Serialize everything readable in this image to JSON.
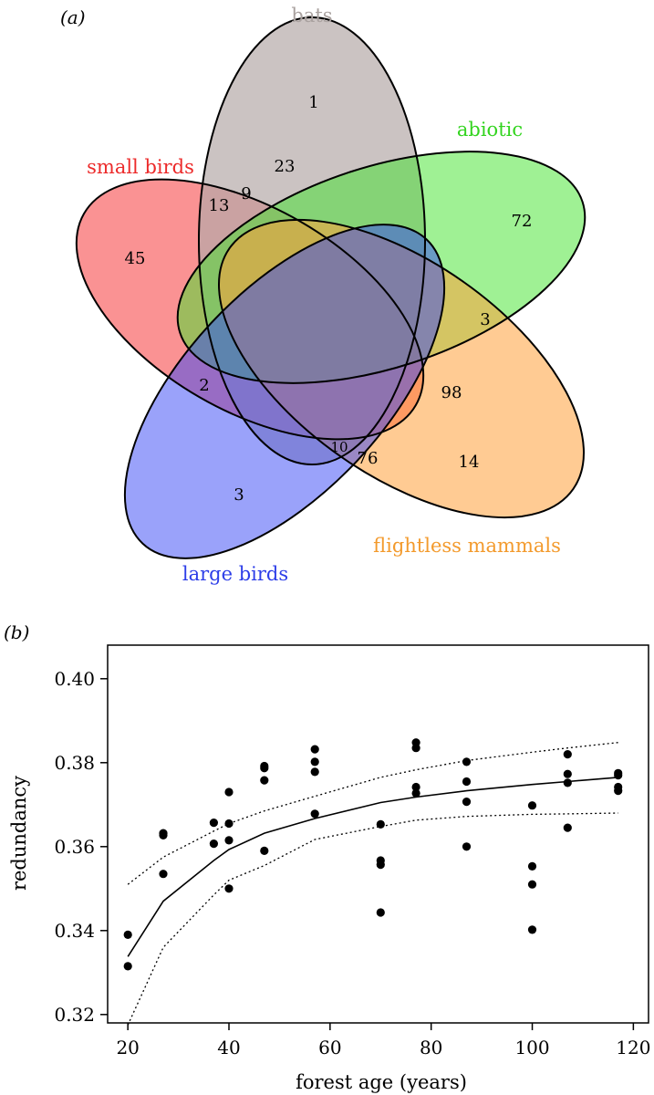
{
  "chart_data": [
    {
      "type": "venn",
      "panel_label": "(a)",
      "sets": [
        {
          "name": "bats",
          "color": "#b8b0ae"
        },
        {
          "name": "abiotic",
          "color": "#44e62e"
        },
        {
          "name": "small birds",
          "color": "#f5393a"
        },
        {
          "name": "large birds",
          "color": "#4a57f7"
        },
        {
          "name": "flightless mammals",
          "color": "#ffa533"
        }
      ],
      "regions": [
        {
          "sets": [
            "bats"
          ],
          "count": "1"
        },
        {
          "sets": [
            "bats",
            "small birds"
          ],
          "count": "23"
        },
        {
          "sets": [
            "small birds",
            "bats",
            "large birds"
          ],
          "count": "13"
        },
        {
          "sets": [
            "small birds",
            "bats",
            "large birds",
            "flightless mammals"
          ],
          "count": "9"
        },
        {
          "sets": [
            "abiotic"
          ],
          "count": "72"
        },
        {
          "sets": [
            "small birds"
          ],
          "count": "45"
        },
        {
          "sets": [
            "abiotic",
            "flightless mammals"
          ],
          "count": "3"
        },
        {
          "sets": [
            "small birds",
            "large birds"
          ],
          "count": "2"
        },
        {
          "sets": [
            "large birds",
            "flightless mammals",
            "abiotic"
          ],
          "count": "98"
        },
        {
          "sets": [
            "large birds",
            "flightless mammals",
            "bats"
          ],
          "count": "10"
        },
        {
          "sets": [
            "large birds",
            "flightless mammals"
          ],
          "count": "76"
        },
        {
          "sets": [
            "flightless mammals"
          ],
          "count": "14"
        },
        {
          "sets": [
            "large birds"
          ],
          "count": "3"
        }
      ]
    },
    {
      "type": "scatter",
      "panel_label": "(b)",
      "xlabel": "forest age (years)",
      "ylabel": "redundancy",
      "xlim": [
        16,
        123
      ],
      "ylim": [
        0.318,
        0.408
      ],
      "xticks": [
        "20",
        "40",
        "60",
        "80",
        "100",
        "120"
      ],
      "yticks": [
        "0.32",
        "0.34",
        "0.36",
        "0.38",
        "0.40"
      ],
      "points": [
        [
          20,
          0.339
        ],
        [
          20,
          0.3315
        ],
        [
          27,
          0.3627
        ],
        [
          27,
          0.3632
        ],
        [
          27,
          0.3535
        ],
        [
          37,
          0.3657
        ],
        [
          37,
          0.3607
        ],
        [
          40,
          0.373
        ],
        [
          40,
          0.3655
        ],
        [
          40,
          0.3615
        ],
        [
          40,
          0.35
        ],
        [
          47,
          0.3792
        ],
        [
          47,
          0.3787
        ],
        [
          47,
          0.3758
        ],
        [
          47,
          0.359
        ],
        [
          57,
          0.3832
        ],
        [
          57,
          0.3802
        ],
        [
          57,
          0.3778
        ],
        [
          57,
          0.3678
        ],
        [
          70,
          0.3653
        ],
        [
          70,
          0.3567
        ],
        [
          70,
          0.3557
        ],
        [
          70,
          0.3443
        ],
        [
          77,
          0.3848
        ],
        [
          77,
          0.3835
        ],
        [
          77,
          0.3742
        ],
        [
          77,
          0.3727
        ],
        [
          87,
          0.3802
        ],
        [
          87,
          0.3755
        ],
        [
          87,
          0.3707
        ],
        [
          87,
          0.36
        ],
        [
          100,
          0.3698
        ],
        [
          100,
          0.3553
        ],
        [
          100,
          0.351
        ],
        [
          100,
          0.3402
        ],
        [
          107,
          0.382
        ],
        [
          107,
          0.3773
        ],
        [
          107,
          0.3752
        ],
        [
          107,
          0.3645
        ],
        [
          117,
          0.3775
        ],
        [
          117,
          0.377
        ],
        [
          117,
          0.3742
        ],
        [
          117,
          0.3733
        ]
      ],
      "fit": {
        "x": [
          20,
          27,
          37,
          40,
          47,
          57,
          70,
          77,
          87,
          100,
          107,
          117
        ],
        "y": [
          0.3338,
          0.347,
          0.3567,
          0.3593,
          0.3632,
          0.3667,
          0.3705,
          0.3718,
          0.3733,
          0.3748,
          0.3755,
          0.3765
        ]
      },
      "ci_upper": {
        "x": [
          20,
          27,
          37,
          40,
          47,
          57,
          70,
          77,
          87,
          100,
          107,
          117
        ],
        "y": [
          0.351,
          0.3575,
          0.3637,
          0.3655,
          0.3685,
          0.372,
          0.3765,
          0.3783,
          0.3805,
          0.3825,
          0.3835,
          0.3848
        ]
      },
      "ci_lower": {
        "x": [
          20,
          27,
          37,
          40,
          47,
          57,
          70,
          77,
          87,
          100,
          107,
          117
        ],
        "y": [
          0.3175,
          0.336,
          0.3485,
          0.352,
          0.3555,
          0.3617,
          0.3648,
          0.3663,
          0.3672,
          0.3677,
          0.3678,
          0.368
        ]
      }
    }
  ]
}
